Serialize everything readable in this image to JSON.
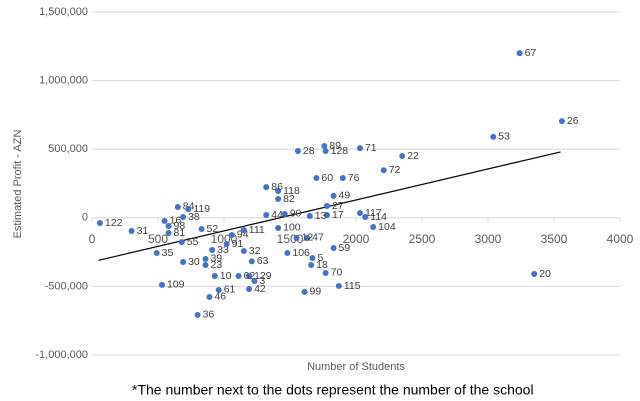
{
  "chart_data": {
    "type": "scatter",
    "x_label": "Number of Students",
    "y_label": "Estimated Profit - AZN",
    "footnote": "*The number next to the dots represent the number of the school",
    "xlim": [
      0,
      4000
    ],
    "xticks": [
      0,
      500,
      1000,
      1500,
      2000,
      2500,
      3000,
      3500,
      4000
    ],
    "ylim": [
      -1000000,
      1500000
    ],
    "yticks": [
      {
        "value": -1000000,
        "label": "-1,000,000"
      },
      {
        "value": -500000,
        "label": "-500,000"
      },
      0,
      {
        "value": 500000,
        "label": "500,000"
      },
      {
        "value": 1000000,
        "label": "1,000,000"
      },
      {
        "value": 1500000,
        "label": "1,500,000"
      }
    ],
    "grid": true,
    "series": [
      {
        "color": "#4472c4",
        "x": [
          3240,
          3560,
          3040,
          3350,
          2350,
          2030,
          2210,
          1900,
          1700,
          1760,
          1770,
          1560,
          1830,
          1780,
          2030,
          2070,
          2130,
          1830,
          1670,
          1660,
          1770,
          1870,
          1610,
          1480,
          1410,
          1630,
          1780,
          1650,
          1410,
          1320,
          1410,
          1210,
          1150,
          1190,
          1230,
          1110,
          1190,
          930,
          960,
          890,
          800,
          530,
          60,
          300,
          490,
          690,
          860,
          860,
          910,
          1020,
          1060,
          690,
          650,
          830,
          680,
          580,
          580,
          550,
          1150,
          1550,
          1460,
          1320,
          730
        ],
        "values": [
          1200000,
          705000,
          590000,
          -410000,
          450000,
          508000,
          347000,
          290000,
          290000,
          523000,
          487000,
          487000,
          160000,
          86000,
          35000,
          6000,
          -67000,
          -220000,
          -293000,
          -344000,
          -402000,
          -497000,
          -540000,
          -257000,
          -74000,
          -147000,
          20000,
          13000,
          195000,
          224000,
          137000,
          -318000,
          -242000,
          -424000,
          -461000,
          -424000,
          -519000,
          -424000,
          -526000,
          -577000,
          -708000,
          -489000,
          -38000,
          -96000,
          -257000,
          -322000,
          -300000,
          -344000,
          -235000,
          -191000,
          -125000,
          6000,
          79000,
          -82000,
          -177000,
          -111000,
          -60000,
          -23000,
          -89000,
          -147000,
          28000,
          20000,
          64000
        ],
        "labels": [
          "67",
          "26",
          "53",
          "20",
          "22",
          "71",
          "72",
          "76",
          "60",
          "89",
          "128",
          "28",
          "49",
          "27",
          "117",
          "114",
          "104",
          "59",
          "5",
          "18",
          "70",
          "115",
          "99",
          "106",
          "100",
          "47",
          "17",
          "13",
          "118",
          "86",
          "82",
          "63",
          "32",
          "129",
          "3",
          "62",
          "42",
          "10",
          "61",
          "46",
          "36",
          "109",
          "122",
          "31",
          "35",
          "30",
          "39",
          "23",
          "33",
          "91",
          "94",
          "38",
          "84",
          "52",
          "55",
          "81",
          "98",
          "16",
          "111",
          "12",
          "90",
          "44",
          "119"
        ]
      }
    ],
    "trendline": {
      "color": "#000000",
      "x": [
        50,
        3550
      ],
      "y": [
        -310000,
        480000
      ]
    }
  }
}
